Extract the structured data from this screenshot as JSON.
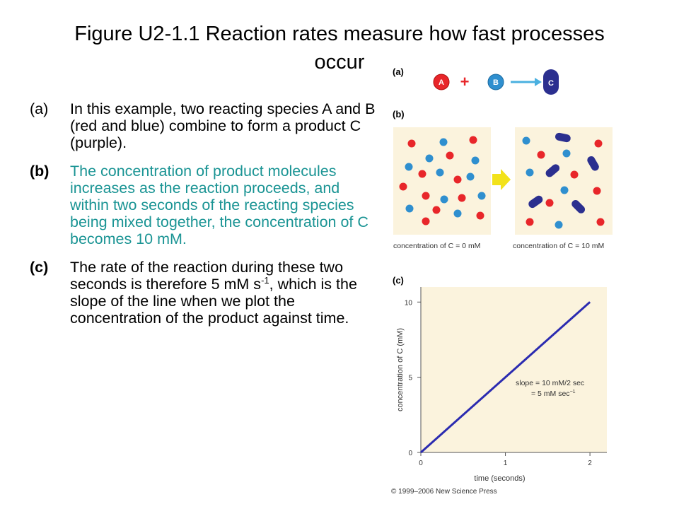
{
  "title_line1": "Figure U2-1.1 Reaction rates measure how fast processes",
  "title_line2": "occur",
  "paragraphs": {
    "a": {
      "label": "(a)",
      "text": "In this example, two reacting species A and B (red and blue) combine to form a product C (purple)."
    },
    "b": {
      "label": "(b)",
      "text": "The concentration of product molecules increases as the reaction proceeds, and within two seconds of the reacting species being mixed together, the concentration of C becomes 10 mM."
    },
    "c": {
      "label": "(c)",
      "text_before": "The rate of the reaction during these two seconds is therefore 5 mM s",
      "superscript": "-1",
      "text_after": ", which is the slope of the line when we plot the concentration of the product against time."
    }
  },
  "figure": {
    "panel_a": {
      "label": "(a)",
      "reactant1": "A",
      "plus": "+",
      "reactant2": "B",
      "product": "C"
    },
    "panel_b": {
      "label": "(b)",
      "left_caption": "concentration of C = 0 mM",
      "right_caption": "concentration of C = 10 mM"
    },
    "panel_c": {
      "label": "(c)",
      "slope_line1": "slope = 10 mM/2 sec",
      "slope_line2": "= 5 mM sec",
      "slope_sup": "−1"
    },
    "copyright": "© 1999–2006 New Science Press"
  },
  "colors": {
    "red": "#e8262a",
    "blue": "#2f8fcf",
    "purple": "#2b2f8f",
    "teal": "#1a9494",
    "yellow": "#f2e21a",
    "plot_line": "#2b2bb0"
  },
  "chart_data": {
    "type": "line",
    "xlabel": "time (seconds)",
    "ylabel": "concentration of C (mM)",
    "xlim": [
      0,
      2.2
    ],
    "ylim": [
      0,
      11
    ],
    "xticks": [
      "0",
      "1",
      "2"
    ],
    "yticks": [
      "0",
      "5",
      "10"
    ],
    "series": [
      {
        "x": [
          0,
          2
        ],
        "y": [
          0,
          10
        ]
      }
    ]
  }
}
